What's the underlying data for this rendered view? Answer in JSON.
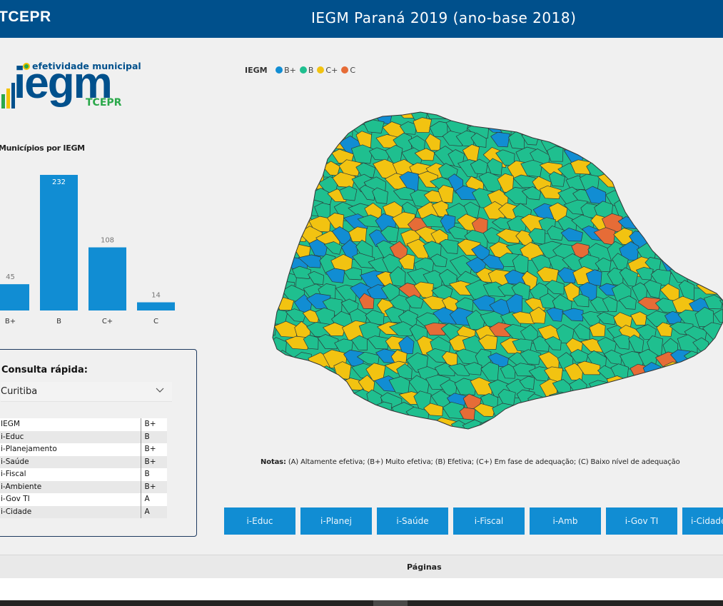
{
  "header": {
    "brand": "TCEPR",
    "title": "IEGM Paraná 2019 (ano-base 2018)"
  },
  "logo": {
    "tagline": "efetividade municipal",
    "word": "iegm",
    "sub": "TCEPR"
  },
  "bar_chart": {
    "title": "Municípios por IEGM",
    "chart_data": {
      "type": "bar",
      "categories": [
        "B+",
        "B",
        "C+",
        "C"
      ],
      "values": [
        45,
        232,
        108,
        14
      ],
      "color": "#118dd3"
    }
  },
  "consulta": {
    "title": "Consulta rápida:",
    "selected": "Curitiba",
    "rows": [
      {
        "label": "IEGM",
        "value": "B+"
      },
      {
        "label": "i-Educ",
        "value": "B"
      },
      {
        "label": "i-Planejamento",
        "value": "B+"
      },
      {
        "label": "i-Saúde",
        "value": "B+"
      },
      {
        "label": "i-Fiscal",
        "value": "B"
      },
      {
        "label": "i-Ambiente",
        "value": "B+"
      },
      {
        "label": "i-Gov TI",
        "value": "A"
      },
      {
        "label": "i-Cidade",
        "value": "A"
      }
    ]
  },
  "map": {
    "legend_title": "IEGM",
    "legend": [
      {
        "label": "B+",
        "color": "#118dd3"
      },
      {
        "label": "B",
        "color": "#1fbf8f"
      },
      {
        "label": "C+",
        "color": "#f2c311"
      },
      {
        "label": "C",
        "color": "#e66c37"
      }
    ]
  },
  "notes": {
    "label": "Notas:",
    "text": " (A) Altamente efetiva; (B+) Muito efetiva; (B) Efetiva; (C+) Em fase de adequação; (C) Baixo nível de adequação"
  },
  "nav_buttons": [
    "i-Educ",
    "i-Planej",
    "i-Saúde",
    "i-Fiscal",
    "i-Amb",
    "i-Gov TI",
    "i-Cidade"
  ],
  "pages_bar": {
    "label": "Páginas"
  }
}
